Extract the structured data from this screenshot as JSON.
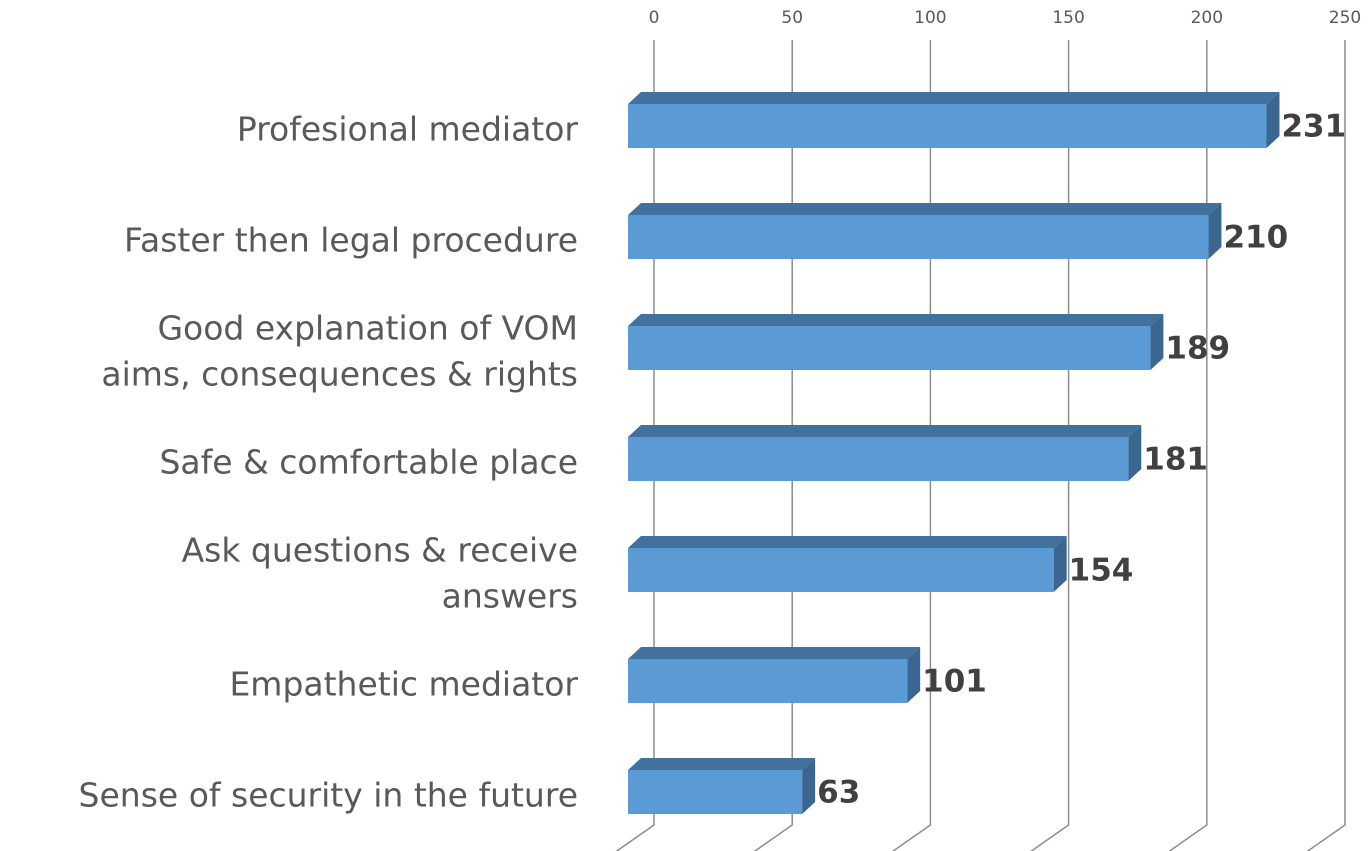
{
  "chart_data": {
    "type": "bar3d_horizontal",
    "categories": [
      [
        "Profesional mediator"
      ],
      [
        "Faster then legal procedure"
      ],
      [
        "Good explanation of VOM",
        "aims, consequences & rights"
      ],
      [
        "Safe & comfortable place"
      ],
      [
        "Ask questions & receive",
        "answers"
      ],
      [
        "Empathetic mediator"
      ],
      [
        "Sense of security in the future"
      ]
    ],
    "values": [
      231,
      210,
      189,
      181,
      154,
      101,
      63
    ],
    "color": "#5b9bd5",
    "xlim": [
      0,
      250
    ],
    "xticks": [
      0,
      50,
      100,
      150,
      200,
      250
    ],
    "grid": true
  }
}
